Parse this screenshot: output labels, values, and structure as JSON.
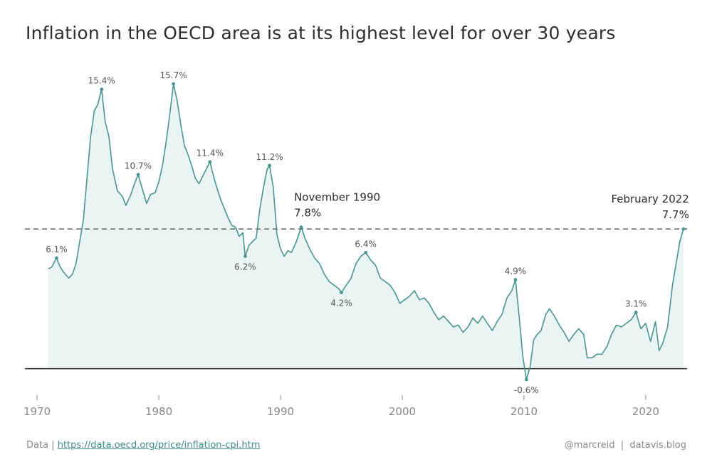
{
  "title": "Inflation in the OECD area is at its highest level for over 30 years",
  "footer": {
    "data_prefix": "Data |",
    "link_text": "https://data.oecd.org/price/inflation-cpi.htm",
    "credit": "@marcreid  |  datavis.blog"
  },
  "colors": {
    "line": "#4a9592",
    "fill": "#e9f4f3",
    "reference": "#555555",
    "axis": "#333333"
  },
  "chart_data": {
    "type": "area",
    "title": "Inflation in the OECD area is at its highest level for over 30 years",
    "xlabel": "",
    "ylabel": "",
    "xlim": [
      1969.0,
      2023.4
    ],
    "ylim": [
      -0.6,
      15.7
    ],
    "x_ticks": [
      1970,
      1980,
      1990,
      2000,
      2010,
      2020
    ],
    "grid": false,
    "reference_line": {
      "y": 7.7,
      "style": "dashed"
    },
    "series": [
      {
        "points": [
          [
            1970.9,
            5.5
          ],
          [
            1971.2,
            5.6
          ],
          [
            1971.6,
            6.1
          ],
          [
            1971.9,
            5.6
          ],
          [
            1972.2,
            5.3
          ],
          [
            1972.6,
            5.0
          ],
          [
            1972.9,
            5.2
          ],
          [
            1973.2,
            5.8
          ],
          [
            1973.5,
            7.0
          ],
          [
            1973.8,
            8.2
          ],
          [
            1974.1,
            10.5
          ],
          [
            1974.4,
            12.8
          ],
          [
            1974.7,
            14.2
          ],
          [
            1975.0,
            14.6
          ],
          [
            1975.3,
            15.4
          ],
          [
            1975.6,
            13.6
          ],
          [
            1975.9,
            12.8
          ],
          [
            1976.2,
            11.0
          ],
          [
            1976.6,
            9.8
          ],
          [
            1977.0,
            9.5
          ],
          [
            1977.3,
            9.0
          ],
          [
            1977.7,
            9.6
          ],
          [
            1978.0,
            10.2
          ],
          [
            1978.3,
            10.7
          ],
          [
            1978.7,
            9.8
          ],
          [
            1979.0,
            9.1
          ],
          [
            1979.3,
            9.6
          ],
          [
            1979.7,
            9.7
          ],
          [
            1980.0,
            10.3
          ],
          [
            1980.3,
            11.2
          ],
          [
            1980.6,
            12.5
          ],
          [
            1980.9,
            14.0
          ],
          [
            1981.2,
            15.7
          ],
          [
            1981.5,
            14.8
          ],
          [
            1981.8,
            13.5
          ],
          [
            1982.1,
            12.3
          ],
          [
            1982.4,
            11.8
          ],
          [
            1982.7,
            11.2
          ],
          [
            1983.0,
            10.5
          ],
          [
            1983.3,
            10.2
          ],
          [
            1983.6,
            10.6
          ],
          [
            1983.9,
            11.0
          ],
          [
            1984.2,
            11.4
          ],
          [
            1984.5,
            10.6
          ],
          [
            1984.8,
            9.9
          ],
          [
            1985.1,
            9.3
          ],
          [
            1985.4,
            8.8
          ],
          [
            1985.7,
            8.3
          ],
          [
            1986.0,
            7.9
          ],
          [
            1986.3,
            7.8
          ],
          [
            1986.6,
            7.3
          ],
          [
            1986.9,
            7.5
          ],
          [
            1987.1,
            6.2
          ],
          [
            1987.4,
            6.8
          ],
          [
            1987.7,
            7.0
          ],
          [
            1988.0,
            7.2
          ],
          [
            1988.3,
            8.8
          ],
          [
            1988.6,
            10.0
          ],
          [
            1988.9,
            11.0
          ],
          [
            1989.1,
            11.2
          ],
          [
            1989.4,
            10.0
          ],
          [
            1989.7,
            7.4
          ],
          [
            1990.0,
            6.6
          ],
          [
            1990.3,
            6.2
          ],
          [
            1990.6,
            6.5
          ],
          [
            1990.9,
            6.4
          ],
          [
            1991.3,
            7.0
          ],
          [
            1991.7,
            7.8
          ],
          [
            1992.0,
            7.2
          ],
          [
            1992.4,
            6.6
          ],
          [
            1992.8,
            6.1
          ],
          [
            1993.2,
            5.8
          ],
          [
            1993.6,
            5.2
          ],
          [
            1994.0,
            4.8
          ],
          [
            1994.4,
            4.6
          ],
          [
            1994.8,
            4.4
          ],
          [
            1995.0,
            4.2
          ],
          [
            1995.4,
            4.6
          ],
          [
            1995.8,
            5.0
          ],
          [
            1996.2,
            5.8
          ],
          [
            1996.6,
            6.2
          ],
          [
            1997.0,
            6.4
          ],
          [
            1997.4,
            6.0
          ],
          [
            1997.8,
            5.7
          ],
          [
            1998.2,
            5.0
          ],
          [
            1998.6,
            4.8
          ],
          [
            1999.0,
            4.6
          ],
          [
            1999.4,
            4.2
          ],
          [
            1999.8,
            3.6
          ],
          [
            2000.2,
            3.8
          ],
          [
            2000.6,
            4.0
          ],
          [
            2001.0,
            4.3
          ],
          [
            2001.4,
            3.8
          ],
          [
            2001.8,
            3.9
          ],
          [
            2002.2,
            3.6
          ],
          [
            2002.6,
            3.1
          ],
          [
            2003.0,
            2.7
          ],
          [
            2003.4,
            2.9
          ],
          [
            2003.8,
            2.6
          ],
          [
            2004.2,
            2.3
          ],
          [
            2004.6,
            2.4
          ],
          [
            2005.0,
            2.0
          ],
          [
            2005.4,
            2.3
          ],
          [
            2005.8,
            2.8
          ],
          [
            2006.2,
            2.5
          ],
          [
            2006.6,
            2.9
          ],
          [
            2007.0,
            2.5
          ],
          [
            2007.4,
            2.1
          ],
          [
            2007.8,
            2.6
          ],
          [
            2008.2,
            3.0
          ],
          [
            2008.6,
            3.9
          ],
          [
            2009.0,
            4.3
          ],
          [
            2009.3,
            4.9
          ],
          [
            2009.6,
            2.9
          ],
          [
            2009.9,
            0.7
          ],
          [
            2010.2,
            -0.6
          ],
          [
            2010.5,
            0.1
          ],
          [
            2010.8,
            1.6
          ],
          [
            2011.1,
            1.9
          ],
          [
            2011.4,
            2.1
          ],
          [
            2011.8,
            3.0
          ],
          [
            2012.1,
            3.3
          ],
          [
            2012.5,
            2.9
          ],
          [
            2012.9,
            2.4
          ],
          [
            2013.3,
            2.0
          ],
          [
            2013.7,
            1.5
          ],
          [
            2014.1,
            1.9
          ],
          [
            2014.5,
            2.2
          ],
          [
            2014.9,
            1.9
          ],
          [
            2015.2,
            0.6
          ],
          [
            2015.6,
            0.6
          ],
          [
            2016.0,
            0.8
          ],
          [
            2016.4,
            0.8
          ],
          [
            2016.8,
            1.2
          ],
          [
            2017.2,
            1.9
          ],
          [
            2017.6,
            2.4
          ],
          [
            2018.0,
            2.3
          ],
          [
            2018.4,
            2.5
          ],
          [
            2018.8,
            2.7
          ],
          [
            2019.2,
            3.1
          ],
          [
            2019.6,
            2.2
          ],
          [
            2020.0,
            2.5
          ],
          [
            2020.4,
            1.5
          ],
          [
            2020.8,
            2.6
          ],
          [
            2021.1,
            1.0
          ],
          [
            2021.4,
            1.4
          ],
          [
            2021.8,
            2.3
          ],
          [
            2022.2,
            4.6
          ],
          [
            2022.5,
            5.8
          ],
          [
            2022.8,
            7.0
          ],
          [
            2023.1,
            7.7
          ]
        ]
      }
    ],
    "labels": [
      {
        "x": 1971.6,
        "y": 6.1,
        "text": "6.1%",
        "pos": "above"
      },
      {
        "x": 1975.3,
        "y": 15.4,
        "text": "15.4%",
        "pos": "above"
      },
      {
        "x": 1978.3,
        "y": 10.7,
        "text": "10.7%",
        "pos": "above"
      },
      {
        "x": 1981.2,
        "y": 15.7,
        "text": "15.7%",
        "pos": "above"
      },
      {
        "x": 1984.2,
        "y": 11.4,
        "text": "11.4%",
        "pos": "above"
      },
      {
        "x": 1987.1,
        "y": 6.2,
        "text": "6.2%",
        "pos": "below"
      },
      {
        "x": 1989.1,
        "y": 11.2,
        "text": "11.2%",
        "pos": "above"
      },
      {
        "x": 1995.0,
        "y": 4.2,
        "text": "4.2%",
        "pos": "below"
      },
      {
        "x": 1997.0,
        "y": 6.4,
        "text": "6.4%",
        "pos": "above"
      },
      {
        "x": 2009.3,
        "y": 4.9,
        "text": "4.9%",
        "pos": "above"
      },
      {
        "x": 2010.2,
        "y": -0.6,
        "text": "-0.6%",
        "pos": "below"
      },
      {
        "x": 2019.2,
        "y": 3.1,
        "text": "3.1%",
        "pos": "above"
      }
    ],
    "highlights": [
      {
        "x": 1991.7,
        "y": 7.8,
        "line1": "November 1990",
        "line2": "7.8%",
        "anchor": "start"
      },
      {
        "x": 2023.1,
        "y": 7.7,
        "line1": "February 2022",
        "line2": "7.7%",
        "anchor": "end"
      }
    ]
  }
}
